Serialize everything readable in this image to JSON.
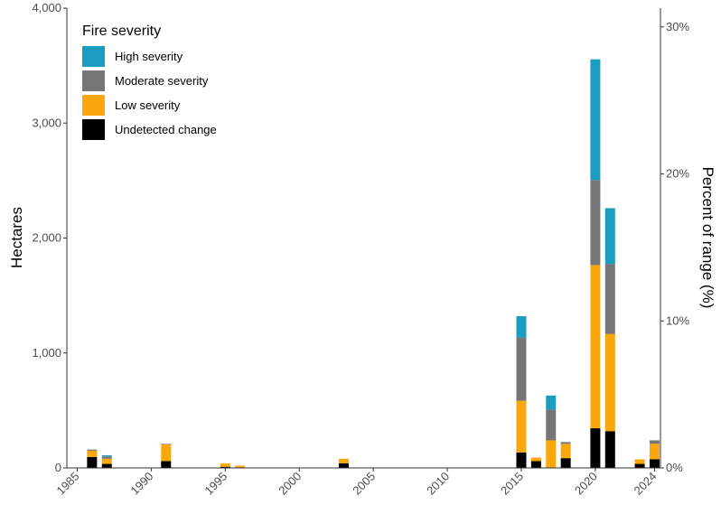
{
  "chart_data": {
    "type": "bar",
    "stacked": true,
    "title": "",
    "xlabel": "",
    "ylabel": "Hectares",
    "y2label": "Percent of range (%)",
    "ylim": [
      0,
      4000
    ],
    "y2lim": [
      0,
      40
    ],
    "yticks": [
      "0",
      "1,000",
      "2,000",
      "3,000",
      "4,000"
    ],
    "y2ticks": [
      "0%",
      "10%",
      "20%",
      "30%"
    ],
    "xticks": [
      "1985",
      "1990",
      "1995",
      "2000",
      "2005",
      "2010",
      "2015",
      "2020",
      "2024"
    ],
    "grid": false,
    "legend": {
      "title": "Fire severity",
      "placement": "top-left",
      "entries": [
        "High severity",
        "Moderate severity",
        "Low severity",
        "Undetected change"
      ]
    },
    "colors": {
      "High severity": "#1b9dbf",
      "Moderate severity": "#767676",
      "Low severity": "#f9a70d",
      "Undetected change": "#000000"
    },
    "x": [
      1986,
      1987,
      1991,
      1995,
      1996,
      2003,
      2015,
      2016,
      2017,
      2018,
      2020,
      2021,
      2023,
      2024
    ],
    "series": [
      {
        "name": "Undetected change",
        "values": [
          95,
          35,
          60,
          10,
          5,
          40,
          135,
          60,
          5,
          85,
          345,
          320,
          35,
          75
        ]
      },
      {
        "name": "Low severity",
        "values": [
          55,
          45,
          145,
          30,
          15,
          40,
          450,
          30,
          235,
          125,
          1420,
          845,
          40,
          135
        ]
      },
      {
        "name": "Moderate severity",
        "values": [
          10,
          20,
          5,
          0,
          0,
          0,
          550,
          0,
          270,
          15,
          740,
          610,
          0,
          30
        ]
      },
      {
        "name": "High severity",
        "values": [
          0,
          10,
          0,
          0,
          0,
          0,
          185,
          0,
          120,
          0,
          1050,
          485,
          0,
          0
        ]
      }
    ]
  }
}
